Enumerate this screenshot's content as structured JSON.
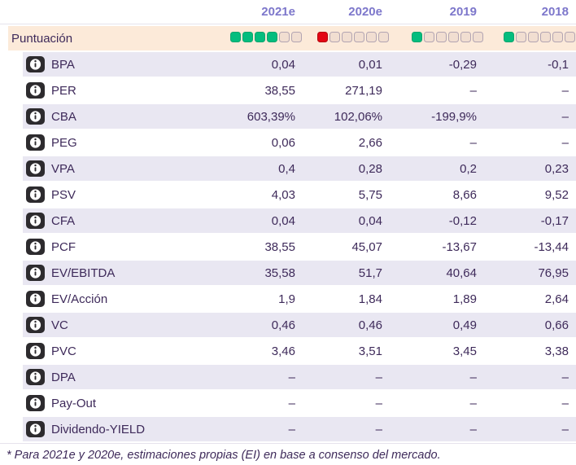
{
  "table": {
    "year_headers": [
      "2021e",
      "2020e",
      "2019",
      "2018"
    ],
    "score_row": {
      "label": "Puntuación",
      "total_squares": 6,
      "scores": [
        {
          "year": "2021e",
          "filled": 4,
          "fill_color": "green"
        },
        {
          "year": "2020e",
          "filled": 1,
          "fill_color": "red"
        },
        {
          "year": "2019",
          "filled": 1,
          "fill_color": "green"
        },
        {
          "year": "2018",
          "filled": 1,
          "fill_color": "green"
        }
      ]
    },
    "rows": [
      {
        "label": "BPA",
        "values": [
          "0,04",
          "0,01",
          "-0,29",
          "-0,1"
        ]
      },
      {
        "label": "PER",
        "values": [
          "38,55",
          "271,19",
          "–",
          "–"
        ]
      },
      {
        "label": "CBA",
        "values": [
          "603,39%",
          "102,06%",
          "-199,9%",
          "–"
        ]
      },
      {
        "label": "PEG",
        "values": [
          "0,06",
          "2,66",
          "–",
          "–"
        ]
      },
      {
        "label": "VPA",
        "values": [
          "0,4",
          "0,28",
          "0,2",
          "0,23"
        ]
      },
      {
        "label": "PSV",
        "values": [
          "4,03",
          "5,75",
          "8,66",
          "9,52"
        ]
      },
      {
        "label": "CFA",
        "values": [
          "0,04",
          "0,04",
          "-0,12",
          "-0,17"
        ]
      },
      {
        "label": "PCF",
        "values": [
          "38,55",
          "45,07",
          "-13,67",
          "-13,44"
        ]
      },
      {
        "label": "EV/EBITDA",
        "values": [
          "35,58",
          "51,7",
          "40,64",
          "76,95"
        ]
      },
      {
        "label": "EV/Acción",
        "values": [
          "1,9",
          "1,84",
          "1,89",
          "2,64"
        ]
      },
      {
        "label": "VC",
        "values": [
          "0,46",
          "0,46",
          "0,49",
          "0,66"
        ]
      },
      {
        "label": "PVC",
        "values": [
          "3,46",
          "3,51",
          "3,45",
          "3,38"
        ]
      },
      {
        "label": "DPA",
        "values": [
          "–",
          "–",
          "–",
          "–"
        ]
      },
      {
        "label": "Pay-Out",
        "values": [
          "–",
          "–",
          "–",
          "–"
        ]
      },
      {
        "label": "Dividendo-YIELD",
        "values": [
          "–",
          "–",
          "–",
          "–"
        ]
      }
    ]
  },
  "footnote": "* Para 2021e y 2020e, estimaciones propias (EI) en base a consenso del mercado.",
  "icons": {
    "info": "ⓘ"
  },
  "colors": {
    "score_green": "#04bd7e",
    "score_red": "#e30613",
    "score_row_bg": "#fcead9",
    "alt_row_bg": "#e9e7f2",
    "year_header_text": "#7d77cb",
    "body_text": "#3e2a5a",
    "info_icon_bg": "#2d2b2e",
    "divider": "#e6e3ec"
  }
}
